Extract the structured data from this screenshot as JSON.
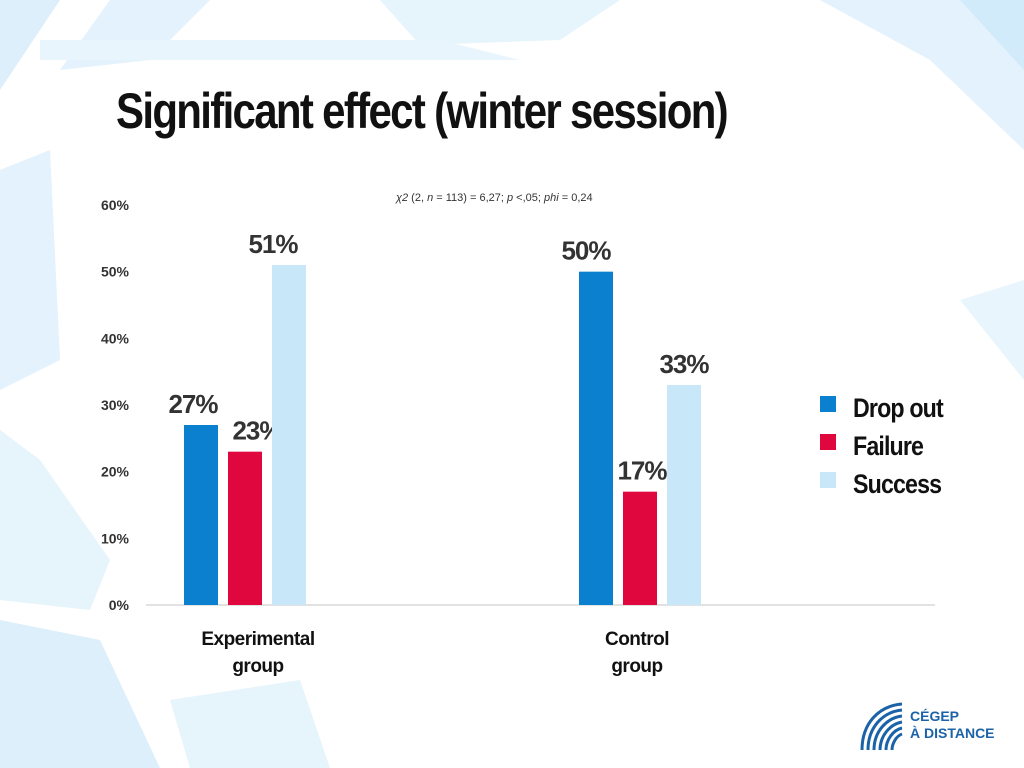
{
  "slide": {
    "title": "Significant effect (winter session)",
    "stat_note": {
      "chi_symbol": "χ2",
      "df_text": " (2, ",
      "n_symbol": "n",
      "n_value": " = 113) = 6,27; ",
      "p_symbol": "p",
      "p_value": " <,05; ",
      "phi_symbol": "phi",
      "phi_value": " = 0,24"
    }
  },
  "logo": {
    "line1": "CÉGEP",
    "line2": "À DISTANCE",
    "color": "#1b63a8"
  },
  "chart_data": {
    "type": "bar",
    "title": "Significant effect (winter session)",
    "categories": [
      [
        "Experimental",
        "group"
      ],
      [
        "Control",
        "group"
      ]
    ],
    "series": [
      {
        "name": "Drop out",
        "values": [
          27,
          50
        ],
        "color": "#0a80cf"
      },
      {
        "name": "Failure",
        "values": [
          23,
          17
        ],
        "color": "#e0073f"
      },
      {
        "name": "Success",
        "values": [
          51,
          33
        ],
        "color": "#c8e8fa"
      }
    ],
    "data_labels": [
      [
        "27%",
        "50%"
      ],
      [
        "23%",
        "17%"
      ],
      [
        "51%",
        "33%"
      ]
    ],
    "y_ticks": [
      0,
      10,
      20,
      30,
      40,
      50,
      60
    ],
    "y_tick_labels": [
      "0%",
      "10%",
      "20%",
      "30%",
      "40%",
      "50%",
      "60%"
    ],
    "ylim": [
      0,
      60
    ],
    "xlabel": "",
    "ylabel": "",
    "legend_position": "right"
  }
}
